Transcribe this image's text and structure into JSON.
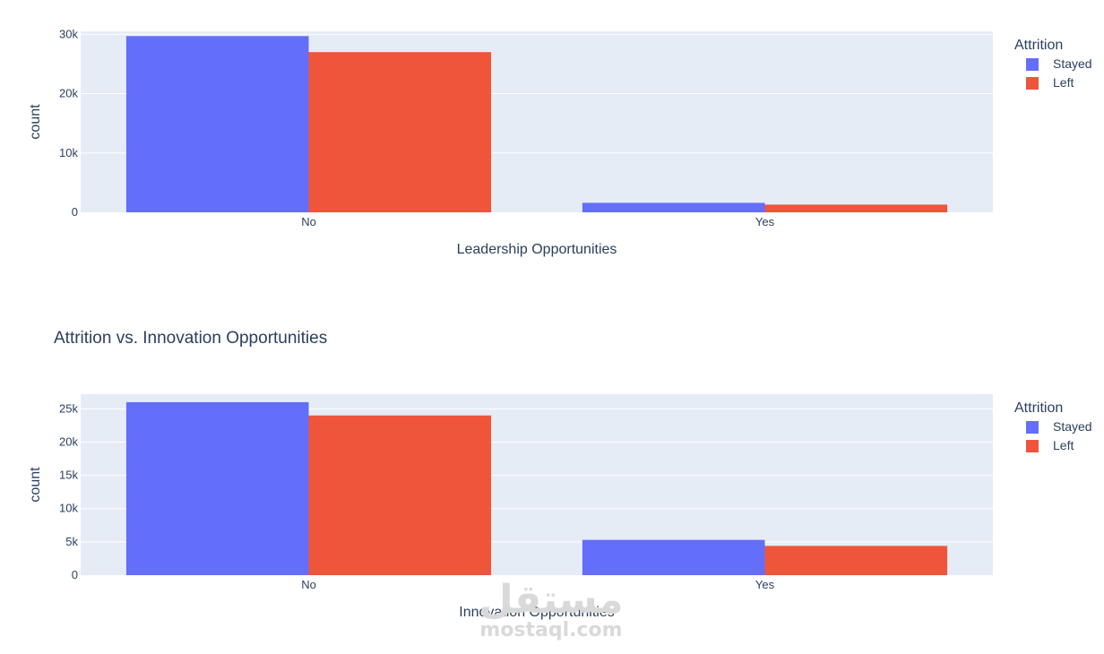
{
  "chart_data": [
    {
      "type": "bar",
      "title": "",
      "xlabel": "Leadership Opportunities",
      "ylabel": "count",
      "categories": [
        "No",
        "Yes"
      ],
      "yticks": [
        0,
        10000,
        20000,
        30000
      ],
      "ytick_labels": [
        "0",
        "10k",
        "20k",
        "30k"
      ],
      "ylim": [
        0,
        30500
      ],
      "legend_title": "Attrition",
      "legend_position": "right",
      "grid": true,
      "series": [
        {
          "name": "Stayed",
          "color": "#636efa",
          "values": [
            29700,
            1600
          ]
        },
        {
          "name": "Left",
          "color": "#ef553b",
          "values": [
            27000,
            1300
          ]
        }
      ]
    },
    {
      "type": "bar",
      "title": "Attrition vs. Innovation Opportunities",
      "xlabel": "Innovation Opportunities",
      "ylabel": "count",
      "categories": [
        "No",
        "Yes"
      ],
      "yticks": [
        0,
        5000,
        10000,
        15000,
        20000,
        25000
      ],
      "ytick_labels": [
        "0",
        "5k",
        "10k",
        "15k",
        "20k",
        "25k"
      ],
      "ylim": [
        0,
        27200
      ],
      "legend_title": "Attrition",
      "legend_position": "right",
      "grid": true,
      "series": [
        {
          "name": "Stayed",
          "color": "#636efa",
          "values": [
            26000,
            5300
          ]
        },
        {
          "name": "Left",
          "color": "#ef553b",
          "values": [
            24000,
            4400
          ]
        }
      ]
    }
  ],
  "watermark": {
    "arabic_text": "مستقل",
    "latin_text": "mostaql.com"
  }
}
